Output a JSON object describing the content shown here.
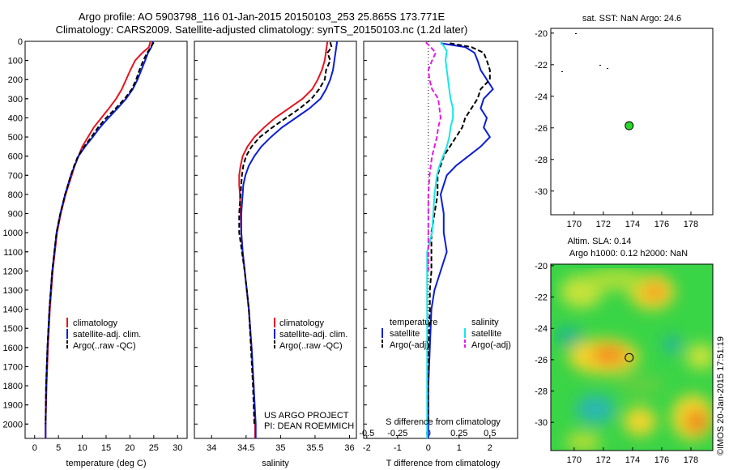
{
  "title_line1": "Argo profile: AO 5903798_116 01-Jan-2015 20150103_253 25.865S 173.771E",
  "title_line2": "Climatology: CARS2009. Satellite-adjusted climatology: synTS_20150103.nc (1.2d later)",
  "credit": "©IMOS 20-Jan-2015 17:51:19",
  "project_line1": "US ARGO PROJECT",
  "project_line2": "PI: DEAN ROEMMICH",
  "colors": {
    "climatology": "#e8141e",
    "satellite": "#0a1ed6",
    "argo": "#000000",
    "temp_sat": "#0a1ed6",
    "sal_sat": "#19e6e6",
    "sal_argo": "#e619e6",
    "marker": "#2bd82b"
  },
  "chart_data": [
    {
      "type": "line",
      "xlabel": "temperature (deg C)",
      "xticks": [
        "0",
        "5",
        "10",
        "15",
        "20",
        "25",
        "30"
      ],
      "xlim": [
        -2,
        32
      ],
      "ylim": [
        2075,
        0
      ],
      "yticks": [
        0,
        100,
        200,
        300,
        400,
        500,
        600,
        700,
        800,
        900,
        1000,
        1100,
        1200,
        1300,
        1400,
        1500,
        1600,
        1700,
        1800,
        1900,
        2000
      ],
      "legend": [
        "climatology",
        "satellite-adj. clim.",
        "Argo(..raw -QC)"
      ],
      "series": [
        {
          "name": "climatology",
          "depth": [
            0,
            30,
            60,
            100,
            150,
            200,
            250,
            300,
            350,
            400,
            450,
            500,
            550,
            600,
            650,
            700,
            800,
            900,
            1000,
            1200,
            1400,
            1600,
            1800,
            2000,
            2075
          ],
          "values": [
            24.3,
            24.0,
            22.6,
            21.1,
            20.1,
            19.2,
            18.3,
            17.1,
            15.6,
            14.0,
            12.4,
            11.2,
            10.0,
            9.2,
            8.4,
            7.8,
            6.5,
            5.5,
            4.7,
            3.8,
            3.2,
            2.8,
            2.5,
            2.3,
            2.3
          ]
        },
        {
          "name": "satellite-adj. clim.",
          "depth": [
            0,
            30,
            60,
            100,
            150,
            200,
            250,
            300,
            350,
            400,
            450,
            500,
            550,
            600,
            650,
            700,
            800,
            900,
            1000,
            1200,
            1400,
            1600,
            1800,
            2000,
            2075
          ],
          "values": [
            24.8,
            24.5,
            23.8,
            23.2,
            22.4,
            21.6,
            20.6,
            19.2,
            17.4,
            15.5,
            13.7,
            12.2,
            10.6,
            9.2,
            8.4,
            7.6,
            6.4,
            5.4,
            4.6,
            3.7,
            3.1,
            2.7,
            2.4,
            2.3,
            2.3
          ]
        },
        {
          "name": "Argo(..raw -QC)",
          "depth": [
            5,
            30,
            60,
            100,
            150,
            200,
            250,
            300,
            350,
            400,
            450,
            500,
            550,
            600,
            650,
            700,
            800,
            900,
            1000,
            1200,
            1400,
            1600,
            1800,
            2000
          ],
          "values": [
            25.0,
            24.4,
            23.6,
            22.8,
            22.0,
            21.3,
            20.4,
            18.9,
            17.0,
            15.0,
            13.3,
            11.9,
            10.4,
            9.1,
            8.3,
            7.6,
            6.4,
            5.4,
            4.6,
            3.7,
            3.1,
            2.7,
            2.4,
            2.3
          ]
        }
      ]
    },
    {
      "type": "line",
      "xlabel": "salinity",
      "xticks": [
        "34",
        "34.5",
        "35",
        "35.5",
        "36"
      ],
      "xlim": [
        33.75,
        36.1
      ],
      "ylim": [
        2075,
        0
      ],
      "legend": [
        "climatology",
        "satellite-adj. clim.",
        "Argo(..raw -QC)"
      ],
      "series": [
        {
          "name": "climatology",
          "depth": [
            0,
            50,
            100,
            150,
            200,
            250,
            300,
            350,
            400,
            450,
            500,
            550,
            600,
            650,
            700,
            750,
            800,
            900,
            1000,
            1100,
            1200,
            1300,
            1400,
            1600,
            1800,
            2000,
            2075
          ],
          "values": [
            35.68,
            35.66,
            35.64,
            35.6,
            35.54,
            35.46,
            35.32,
            35.12,
            34.92,
            34.76,
            34.62,
            34.52,
            34.45,
            34.42,
            34.4,
            34.4,
            34.41,
            34.42,
            34.43,
            34.45,
            34.48,
            34.51,
            34.54,
            34.58,
            34.61,
            34.63,
            34.63
          ]
        },
        {
          "name": "satellite-adj. clim.",
          "depth": [
            0,
            50,
            100,
            150,
            200,
            250,
            300,
            350,
            400,
            450,
            500,
            550,
            600,
            650,
            700,
            750,
            800,
            900,
            1000,
            1100,
            1200,
            1300,
            1400,
            1600,
            1800,
            2000,
            2075
          ],
          "values": [
            35.82,
            35.8,
            35.78,
            35.76,
            35.72,
            35.66,
            35.58,
            35.42,
            35.22,
            35.02,
            34.86,
            34.72,
            34.62,
            34.54,
            34.49,
            34.46,
            34.45,
            34.43,
            34.43,
            34.45,
            34.48,
            34.51,
            34.54,
            34.58,
            34.61,
            34.64,
            34.64
          ]
        },
        {
          "name": "Argo(..raw -QC)",
          "depth": [
            5,
            30,
            60,
            100,
            150,
            200,
            250,
            300,
            350,
            400,
            450,
            500,
            550,
            600,
            650,
            700,
            800,
            900,
            1000,
            1100,
            1200,
            1300,
            1400,
            1600,
            1800,
            2000
          ],
          "values": [
            35.72,
            35.74,
            35.68,
            35.72,
            35.66,
            35.64,
            35.56,
            35.45,
            35.28,
            35.08,
            34.88,
            34.7,
            34.58,
            34.5,
            34.46,
            34.44,
            34.42,
            34.4,
            34.4,
            34.44,
            34.48,
            34.51,
            34.54,
            34.57,
            34.6,
            34.62
          ]
        }
      ]
    },
    {
      "type": "line",
      "xlabel": "T difference from climatology",
      "xlabel_top": "S difference from climatology",
      "xticks": [
        "-2",
        "-1",
        "0",
        "1",
        "2"
      ],
      "xticks_top": [
        "-0.5",
        "-0.25",
        "0",
        "0.25",
        "0.5"
      ],
      "xlim": [
        -2.1,
        2.9
      ],
      "ylim": [
        2075,
        0
      ],
      "legend_temp_title": "temperature",
      "legend_sal_title": "salinity",
      "legend_temp": [
        "satellite",
        "Argo(-adj)"
      ],
      "legend_sal": [
        "satellite",
        "Argo(-adj)"
      ],
      "series": [
        {
          "name": "temperature satellite",
          "depth": [
            10,
            30,
            60,
            100,
            150,
            200,
            250,
            300,
            350,
            400,
            450,
            500,
            550,
            600,
            650,
            700,
            800,
            900,
            1000,
            1100,
            1200,
            1300,
            1400,
            1600,
            1800,
            2000,
            2075
          ],
          "values": [
            0.4,
            1.2,
            1.5,
            1.6,
            1.7,
            1.9,
            2.1,
            1.8,
            1.7,
            1.9,
            1.8,
            2.0,
            1.7,
            1.3,
            0.9,
            0.6,
            0.4,
            0.5,
            0.5,
            0.6,
            0.4,
            0.2,
            0.1,
            0.05,
            0.0,
            0.0,
            0.0
          ]
        },
        {
          "name": "temperature Argo(-adj)",
          "depth": [
            10,
            30,
            60,
            100,
            150,
            200,
            250,
            300,
            350,
            400,
            450,
            500,
            550,
            600,
            650,
            700,
            800,
            900,
            1000,
            1100,
            1200,
            1300,
            1400,
            1600,
            1800,
            2000
          ],
          "values": [
            0.7,
            1.4,
            1.8,
            1.9,
            2.0,
            2.0,
            1.7,
            1.6,
            1.4,
            1.2,
            1.1,
            0.9,
            0.7,
            0.5,
            0.4,
            0.3,
            0.3,
            0.2,
            0.1,
            0.1,
            0.1,
            0.05,
            0.05,
            0.0,
            0.0,
            0.0
          ]
        },
        {
          "name": "salinity satellite",
          "depth": [
            0,
            50,
            100,
            150,
            200,
            250,
            300,
            350,
            400,
            450,
            500,
            550,
            600,
            650,
            700,
            800,
            900,
            1000,
            1100,
            1200,
            1300,
            1400,
            1600,
            1800,
            2000,
            2075
          ],
          "values": [
            0.1,
            0.15,
            0.14,
            0.15,
            0.16,
            0.17,
            0.18,
            0.2,
            0.2,
            0.18,
            0.17,
            0.15,
            0.12,
            0.09,
            0.07,
            0.05,
            0.04,
            0.03,
            -0.01,
            -0.01,
            -0.01,
            -0.01,
            -0.01,
            -0.01,
            -0.01,
            -0.01
          ]
        },
        {
          "name": "salinity Argo(-adj)",
          "depth": [
            5,
            30,
            60,
            100,
            150,
            200,
            250,
            300,
            350,
            400,
            450,
            500,
            550,
            600,
            650,
            700,
            800,
            900,
            1000,
            1100,
            1200
          ],
          "values": [
            -0.02,
            0.02,
            0.06,
            0.03,
            0.0,
            0.01,
            0.03,
            0.08,
            0.09,
            0.1,
            0.08,
            0.07,
            0.05,
            0.03,
            0.02,
            0.01,
            0.0,
            0.0,
            0.0,
            0.0,
            0.0
          ]
        }
      ]
    },
    {
      "type": "scatter",
      "title": "sat. SST: NaN Argo: 24.6",
      "xticks": [
        "170",
        "172",
        "174",
        "176",
        "178"
      ],
      "yticks": [
        "-20",
        "-22",
        "-24",
        "-26",
        "-28",
        "-30"
      ],
      "xlim": [
        168.4,
        179.5
      ],
      "ylim": [
        -31.5,
        -19.7
      ],
      "point": {
        "lon": 173.771,
        "lat": -25.865
      }
    },
    {
      "type": "heatmap",
      "title_line1": "Altim. SLA: 0.14",
      "title_line2": "Argo h1000: 0.12 h2000: NaN",
      "xticks": [
        "170",
        "172",
        "174",
        "176",
        "178"
      ],
      "yticks": [
        "-20",
        "-22",
        "-24",
        "-26",
        "-28",
        "-30"
      ],
      "xlim": [
        168.4,
        179.5
      ],
      "ylim": [
        -31.8,
        -19.9
      ],
      "point": {
        "lon": 173.771,
        "lat": -25.865
      }
    }
  ]
}
